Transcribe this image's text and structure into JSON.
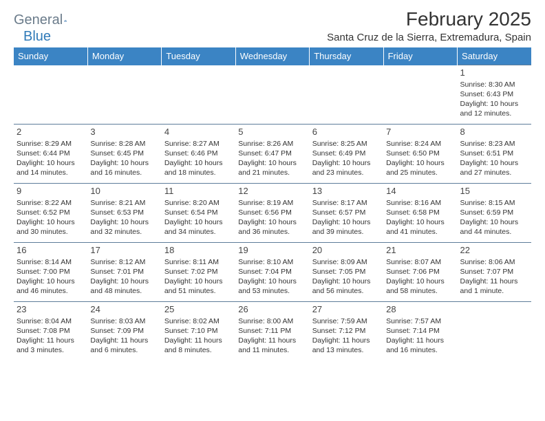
{
  "brand": {
    "part1": "General",
    "part2": "Blue"
  },
  "header": {
    "title": "February 2025",
    "location": "Santa Cruz de la Sierra, Extremadura, Spain"
  },
  "colors": {
    "header_bg": "#3b84c4",
    "header_text": "#ffffff",
    "border": "#5c7b99",
    "brand_gray": "#6a7b8a",
    "brand_blue": "#2f7ab8",
    "logo_shape": "#2f6fae",
    "text": "#333333",
    "bg": "#ffffff"
  },
  "days_of_week": [
    "Sunday",
    "Monday",
    "Tuesday",
    "Wednesday",
    "Thursday",
    "Friday",
    "Saturday"
  ],
  "weeks": [
    [
      null,
      null,
      null,
      null,
      null,
      null,
      {
        "n": "1",
        "sr": "Sunrise: 8:30 AM",
        "ss": "Sunset: 6:43 PM",
        "dl1": "Daylight: 10 hours",
        "dl2": "and 12 minutes."
      }
    ],
    [
      {
        "n": "2",
        "sr": "Sunrise: 8:29 AM",
        "ss": "Sunset: 6:44 PM",
        "dl1": "Daylight: 10 hours",
        "dl2": "and 14 minutes."
      },
      {
        "n": "3",
        "sr": "Sunrise: 8:28 AM",
        "ss": "Sunset: 6:45 PM",
        "dl1": "Daylight: 10 hours",
        "dl2": "and 16 minutes."
      },
      {
        "n": "4",
        "sr": "Sunrise: 8:27 AM",
        "ss": "Sunset: 6:46 PM",
        "dl1": "Daylight: 10 hours",
        "dl2": "and 18 minutes."
      },
      {
        "n": "5",
        "sr": "Sunrise: 8:26 AM",
        "ss": "Sunset: 6:47 PM",
        "dl1": "Daylight: 10 hours",
        "dl2": "and 21 minutes."
      },
      {
        "n": "6",
        "sr": "Sunrise: 8:25 AM",
        "ss": "Sunset: 6:49 PM",
        "dl1": "Daylight: 10 hours",
        "dl2": "and 23 minutes."
      },
      {
        "n": "7",
        "sr": "Sunrise: 8:24 AM",
        "ss": "Sunset: 6:50 PM",
        "dl1": "Daylight: 10 hours",
        "dl2": "and 25 minutes."
      },
      {
        "n": "8",
        "sr": "Sunrise: 8:23 AM",
        "ss": "Sunset: 6:51 PM",
        "dl1": "Daylight: 10 hours",
        "dl2": "and 27 minutes."
      }
    ],
    [
      {
        "n": "9",
        "sr": "Sunrise: 8:22 AM",
        "ss": "Sunset: 6:52 PM",
        "dl1": "Daylight: 10 hours",
        "dl2": "and 30 minutes."
      },
      {
        "n": "10",
        "sr": "Sunrise: 8:21 AM",
        "ss": "Sunset: 6:53 PM",
        "dl1": "Daylight: 10 hours",
        "dl2": "and 32 minutes."
      },
      {
        "n": "11",
        "sr": "Sunrise: 8:20 AM",
        "ss": "Sunset: 6:54 PM",
        "dl1": "Daylight: 10 hours",
        "dl2": "and 34 minutes."
      },
      {
        "n": "12",
        "sr": "Sunrise: 8:19 AM",
        "ss": "Sunset: 6:56 PM",
        "dl1": "Daylight: 10 hours",
        "dl2": "and 36 minutes."
      },
      {
        "n": "13",
        "sr": "Sunrise: 8:17 AM",
        "ss": "Sunset: 6:57 PM",
        "dl1": "Daylight: 10 hours",
        "dl2": "and 39 minutes."
      },
      {
        "n": "14",
        "sr": "Sunrise: 8:16 AM",
        "ss": "Sunset: 6:58 PM",
        "dl1": "Daylight: 10 hours",
        "dl2": "and 41 minutes."
      },
      {
        "n": "15",
        "sr": "Sunrise: 8:15 AM",
        "ss": "Sunset: 6:59 PM",
        "dl1": "Daylight: 10 hours",
        "dl2": "and 44 minutes."
      }
    ],
    [
      {
        "n": "16",
        "sr": "Sunrise: 8:14 AM",
        "ss": "Sunset: 7:00 PM",
        "dl1": "Daylight: 10 hours",
        "dl2": "and 46 minutes."
      },
      {
        "n": "17",
        "sr": "Sunrise: 8:12 AM",
        "ss": "Sunset: 7:01 PM",
        "dl1": "Daylight: 10 hours",
        "dl2": "and 48 minutes."
      },
      {
        "n": "18",
        "sr": "Sunrise: 8:11 AM",
        "ss": "Sunset: 7:02 PM",
        "dl1": "Daylight: 10 hours",
        "dl2": "and 51 minutes."
      },
      {
        "n": "19",
        "sr": "Sunrise: 8:10 AM",
        "ss": "Sunset: 7:04 PM",
        "dl1": "Daylight: 10 hours",
        "dl2": "and 53 minutes."
      },
      {
        "n": "20",
        "sr": "Sunrise: 8:09 AM",
        "ss": "Sunset: 7:05 PM",
        "dl1": "Daylight: 10 hours",
        "dl2": "and 56 minutes."
      },
      {
        "n": "21",
        "sr": "Sunrise: 8:07 AM",
        "ss": "Sunset: 7:06 PM",
        "dl1": "Daylight: 10 hours",
        "dl2": "and 58 minutes."
      },
      {
        "n": "22",
        "sr": "Sunrise: 8:06 AM",
        "ss": "Sunset: 7:07 PM",
        "dl1": "Daylight: 11 hours",
        "dl2": "and 1 minute."
      }
    ],
    [
      {
        "n": "23",
        "sr": "Sunrise: 8:04 AM",
        "ss": "Sunset: 7:08 PM",
        "dl1": "Daylight: 11 hours",
        "dl2": "and 3 minutes."
      },
      {
        "n": "24",
        "sr": "Sunrise: 8:03 AM",
        "ss": "Sunset: 7:09 PM",
        "dl1": "Daylight: 11 hours",
        "dl2": "and 6 minutes."
      },
      {
        "n": "25",
        "sr": "Sunrise: 8:02 AM",
        "ss": "Sunset: 7:10 PM",
        "dl1": "Daylight: 11 hours",
        "dl2": "and 8 minutes."
      },
      {
        "n": "26",
        "sr": "Sunrise: 8:00 AM",
        "ss": "Sunset: 7:11 PM",
        "dl1": "Daylight: 11 hours",
        "dl2": "and 11 minutes."
      },
      {
        "n": "27",
        "sr": "Sunrise: 7:59 AM",
        "ss": "Sunset: 7:12 PM",
        "dl1": "Daylight: 11 hours",
        "dl2": "and 13 minutes."
      },
      {
        "n": "28",
        "sr": "Sunrise: 7:57 AM",
        "ss": "Sunset: 7:14 PM",
        "dl1": "Daylight: 11 hours",
        "dl2": "and 16 minutes."
      },
      null
    ]
  ]
}
